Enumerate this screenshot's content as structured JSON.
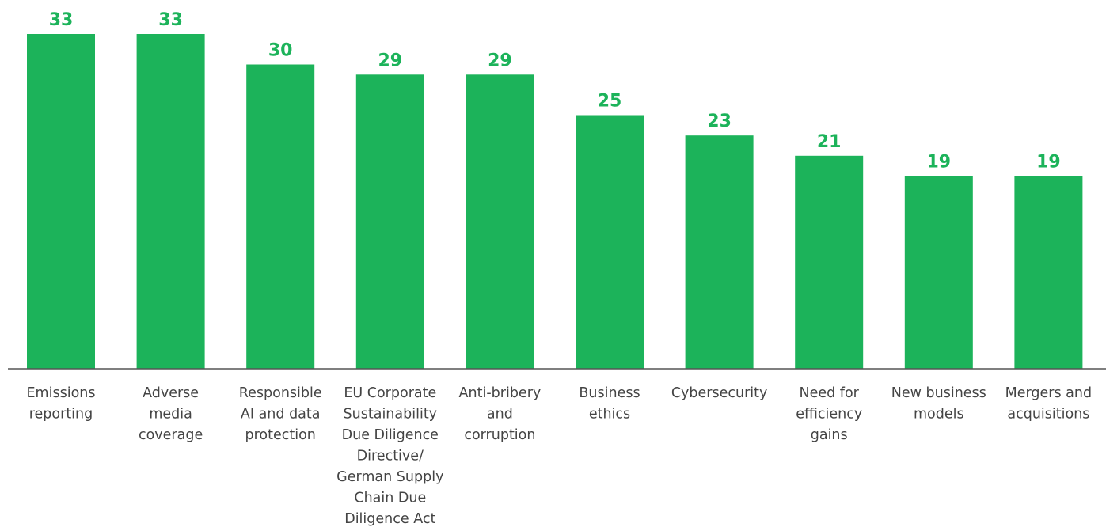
{
  "chart_data": {
    "type": "bar",
    "categories": [
      [
        "Emissions",
        "reporting"
      ],
      [
        "Adverse",
        "media",
        "coverage"
      ],
      [
        "Responsible",
        "AI and data",
        "protection"
      ],
      [
        "EU Corporate",
        "Sustainability",
        "Due Diligence",
        "Directive/",
        "German Supply",
        "Chain Due",
        "Diligence Act"
      ],
      [
        "Anti-bribery",
        "and",
        "corruption"
      ],
      [
        "Business",
        "ethics"
      ],
      [
        "Cybersecurity"
      ],
      [
        "Need for",
        "efficiency",
        "gains"
      ],
      [
        "New business",
        "models"
      ],
      [
        "Mergers and",
        "acquisitions"
      ]
    ],
    "values": [
      33,
      33,
      30,
      29,
      29,
      25,
      23,
      21,
      19,
      19
    ],
    "value_labels": [
      "33",
      "33",
      "30",
      "29",
      "29",
      "25",
      "23",
      "21",
      "19",
      "19"
    ],
    "ylim": [
      0,
      33
    ],
    "grid": false,
    "colors": {
      "bar": "#1cb35a",
      "value_label": "#1cb35a",
      "axis": "#555555",
      "category_label": "#444444"
    }
  }
}
